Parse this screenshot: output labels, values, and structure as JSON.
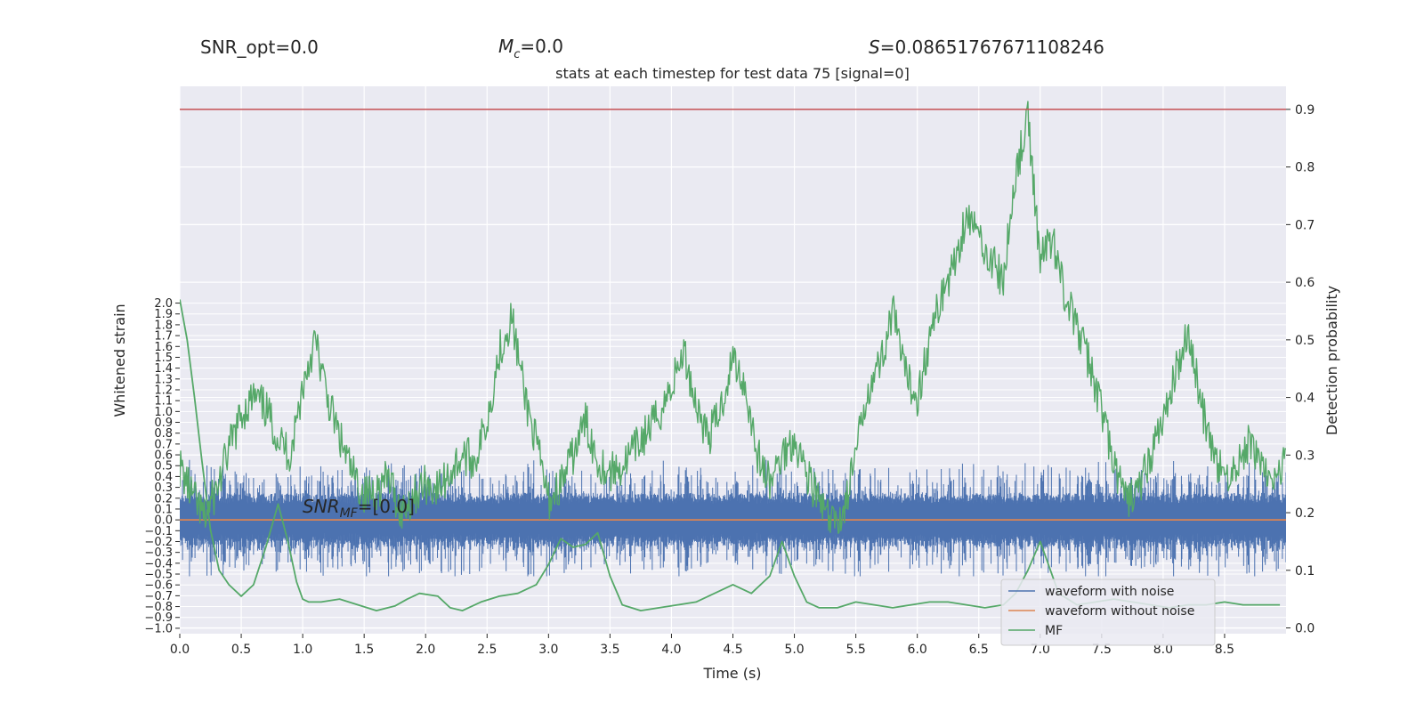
{
  "header": {
    "snr_opt": "SNR_opt=0.0",
    "mc_symbol": "M",
    "mc_sub": "c",
    "mc_value": "=0.0",
    "s_symbol": "S",
    "s_value": "=0.08651767671108246"
  },
  "annotation": {
    "snr_mf_symbol": "SNR",
    "snr_mf_sub": "MF",
    "snr_mf_value": "=[0.0]"
  },
  "chart_data": {
    "type": "line",
    "title": "stats at each timestep for test data 75 [signal=0]",
    "xlabel": "Time (s)",
    "ylabel_left": "Whitened strain",
    "ylabel_right": "Detection probability",
    "xlim": [
      0.0,
      9.0
    ],
    "ylim_left": [
      -1.05,
      4.0
    ],
    "ylim_right": [
      -0.01,
      0.94
    ],
    "x_ticks": [
      "0.0",
      "0.5",
      "1.0",
      "1.5",
      "2.0",
      "2.5",
      "3.0",
      "3.5",
      "4.0",
      "4.5",
      "5.0",
      "5.5",
      "6.0",
      "6.5",
      "7.0",
      "7.5",
      "8.0",
      "8.5"
    ],
    "left_ticks": [
      "-1.0",
      "-0.9",
      "-0.8",
      "-0.7",
      "-0.6",
      "-0.5",
      "-0.4",
      "-0.3",
      "-0.2",
      "-0.1",
      "0.0",
      "0.1",
      "0.2",
      "0.3",
      "0.4",
      "0.5",
      "0.6",
      "0.7",
      "0.8",
      "0.9",
      "1.0",
      "1.1",
      "1.2",
      "1.3",
      "1.4",
      "1.5",
      "1.6",
      "1.7",
      "1.8",
      "1.9",
      "2.0"
    ],
    "right_ticks": [
      "0.0",
      "0.1",
      "0.2",
      "0.3",
      "0.4",
      "0.5",
      "0.6",
      "0.7",
      "0.8",
      "0.9"
    ],
    "threshold": {
      "value": 0.9,
      "color": "#c44e52"
    },
    "grid": true,
    "legend_position": "bottom-right",
    "series": [
      {
        "name": "waveform with noise",
        "color": "#4c72b0",
        "axis": "left",
        "description_band": {
          "typical_amplitude": 0.25,
          "max": 0.72,
          "min": -0.52
        }
      },
      {
        "name": "waveform without noise",
        "color": "#dd8452",
        "axis": "left",
        "x": [
          0.0,
          9.0
        ],
        "y": [
          0.0,
          0.0
        ]
      },
      {
        "name": "Detection probability",
        "color": "#55a868",
        "axis": "right",
        "x": [
          0.0,
          0.1,
          0.2,
          0.3,
          0.4,
          0.5,
          0.6,
          0.7,
          0.8,
          0.9,
          1.0,
          1.1,
          1.2,
          1.3,
          1.4,
          1.5,
          1.6,
          1.7,
          1.8,
          1.9,
          2.0,
          2.1,
          2.2,
          2.3,
          2.4,
          2.5,
          2.6,
          2.7,
          2.8,
          2.9,
          3.0,
          3.1,
          3.2,
          3.3,
          3.4,
          3.5,
          3.6,
          3.7,
          3.8,
          3.9,
          4.0,
          4.1,
          4.2,
          4.3,
          4.4,
          4.5,
          4.6,
          4.7,
          4.8,
          4.9,
          5.0,
          5.1,
          5.2,
          5.3,
          5.4,
          5.5,
          5.6,
          5.7,
          5.8,
          5.9,
          6.0,
          6.1,
          6.2,
          6.3,
          6.4,
          6.5,
          6.6,
          6.7,
          6.8,
          6.9,
          7.0,
          7.1,
          7.2,
          7.3,
          7.4,
          7.5,
          7.6,
          7.7,
          7.8,
          7.9,
          8.0,
          8.1,
          8.2,
          8.3,
          8.4,
          8.5,
          8.6,
          8.7,
          8.8,
          8.9,
          9.0
        ],
        "y": [
          0.28,
          0.23,
          0.19,
          0.24,
          0.31,
          0.37,
          0.4,
          0.38,
          0.33,
          0.3,
          0.42,
          0.5,
          0.4,
          0.33,
          0.27,
          0.23,
          0.24,
          0.26,
          0.2,
          0.23,
          0.25,
          0.24,
          0.27,
          0.3,
          0.29,
          0.36,
          0.48,
          0.54,
          0.41,
          0.32,
          0.22,
          0.25,
          0.3,
          0.36,
          0.29,
          0.27,
          0.28,
          0.31,
          0.34,
          0.37,
          0.42,
          0.48,
          0.39,
          0.33,
          0.38,
          0.47,
          0.42,
          0.3,
          0.25,
          0.3,
          0.33,
          0.27,
          0.22,
          0.18,
          0.2,
          0.3,
          0.42,
          0.46,
          0.55,
          0.44,
          0.4,
          0.5,
          0.58,
          0.63,
          0.72,
          0.68,
          0.64,
          0.6,
          0.79,
          0.88,
          0.64,
          0.68,
          0.58,
          0.52,
          0.46,
          0.38,
          0.28,
          0.22,
          0.24,
          0.3,
          0.36,
          0.44,
          0.52,
          0.4,
          0.3,
          0.26,
          0.28,
          0.32,
          0.29,
          0.24,
          0.31
        ]
      },
      {
        "name": "MF",
        "color": "#55a868",
        "axis": "right",
        "x": [
          0.0,
          0.06,
          0.12,
          0.18,
          0.25,
          0.32,
          0.4,
          0.5,
          0.6,
          0.7,
          0.8,
          0.88,
          0.95,
          1.0,
          1.05,
          1.15,
          1.3,
          1.45,
          1.6,
          1.75,
          1.85,
          1.95,
          2.1,
          2.2,
          2.3,
          2.45,
          2.6,
          2.75,
          2.9,
          3.0,
          3.1,
          3.2,
          3.3,
          3.4,
          3.5,
          3.6,
          3.75,
          3.9,
          4.05,
          4.2,
          4.35,
          4.5,
          4.65,
          4.8,
          4.9,
          5.0,
          5.1,
          5.2,
          5.35,
          5.5,
          5.65,
          5.8,
          5.95,
          6.1,
          6.25,
          6.4,
          6.55,
          6.7,
          6.8,
          6.9,
          7.0,
          7.15,
          7.3,
          7.45,
          7.6,
          7.75,
          7.9,
          8.05,
          8.2,
          8.35,
          8.5,
          8.65,
          8.8,
          8.95
        ],
        "y": [
          0.57,
          0.5,
          0.4,
          0.29,
          0.17,
          0.1,
          0.075,
          0.055,
          0.075,
          0.14,
          0.215,
          0.15,
          0.08,
          0.05,
          0.045,
          0.045,
          0.05,
          0.04,
          0.03,
          0.038,
          0.05,
          0.06,
          0.055,
          0.035,
          0.03,
          0.045,
          0.055,
          0.06,
          0.075,
          0.11,
          0.155,
          0.14,
          0.145,
          0.165,
          0.09,
          0.04,
          0.03,
          0.035,
          0.04,
          0.045,
          0.06,
          0.075,
          0.06,
          0.09,
          0.15,
          0.09,
          0.045,
          0.035,
          0.035,
          0.045,
          0.04,
          0.035,
          0.04,
          0.045,
          0.045,
          0.04,
          0.035,
          0.04,
          0.06,
          0.1,
          0.15,
          0.06,
          0.04,
          0.045,
          0.05,
          0.045,
          0.04,
          0.035,
          0.04,
          0.04,
          0.045,
          0.04,
          0.04,
          0.04
        ]
      }
    ]
  }
}
